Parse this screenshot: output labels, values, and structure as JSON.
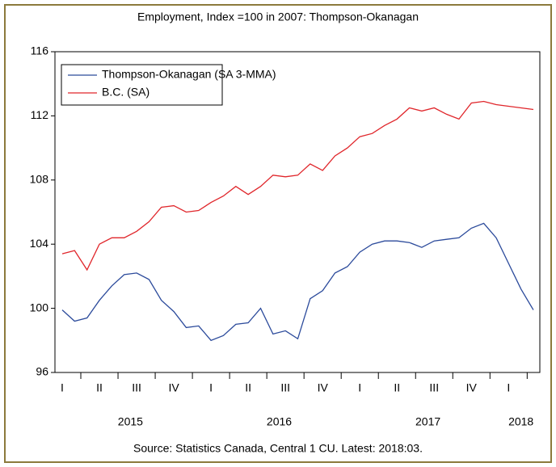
{
  "chart_data": {
    "type": "line",
    "title": "Employment, Index =100 in 2007: Thompson-Okanagan",
    "source": "Source: Statistics Canada, Central 1 CU. Latest: 2018:03.",
    "categories": [
      "I",
      null,
      null,
      "II",
      null,
      null,
      "III",
      null,
      null,
      "IV",
      null,
      null,
      "I",
      null,
      null,
      "II",
      null,
      null,
      "III",
      null,
      null,
      "IV",
      null,
      null,
      "I",
      null,
      null,
      "II",
      null,
      null,
      "III",
      null,
      null,
      "IV",
      null,
      null,
      "I",
      null,
      null
    ],
    "years": [
      "2015",
      "2016",
      "2017",
      "2018"
    ],
    "ylim": [
      96,
      116
    ],
    "yticks": [
      96,
      100,
      104,
      108,
      112,
      116
    ],
    "legend": "upper left",
    "series": [
      {
        "name": "Thompson-Okanagan (SA 3-MMA)",
        "color": "#2b4a9b",
        "values": [
          99.9,
          99.2,
          99.4,
          100.5,
          101.4,
          102.1,
          102.2,
          101.8,
          100.5,
          99.8,
          98.8,
          98.9,
          98.0,
          98.3,
          99.0,
          99.1,
          100.0,
          98.4,
          98.6,
          98.1,
          100.6,
          101.1,
          102.2,
          102.6,
          103.5,
          104.0,
          104.2,
          104.2,
          104.1,
          103.8,
          104.2,
          104.3,
          104.4,
          105.0,
          105.3,
          104.4,
          102.8,
          101.2,
          99.9
        ]
      },
      {
        "name": "B.C. (SA)",
        "color": "#e0262b",
        "values": [
          103.4,
          103.6,
          102.4,
          104.0,
          104.4,
          104.4,
          104.8,
          105.4,
          106.3,
          106.4,
          106.0,
          106.1,
          106.6,
          107.0,
          107.6,
          107.1,
          107.6,
          108.3,
          108.2,
          108.3,
          109.0,
          108.6,
          109.5,
          110.0,
          110.7,
          110.9,
          111.4,
          111.8,
          112.5,
          112.3,
          112.5,
          112.1,
          111.8,
          112.8,
          112.9,
          112.7,
          112.6,
          112.5,
          112.4
        ]
      }
    ]
  }
}
